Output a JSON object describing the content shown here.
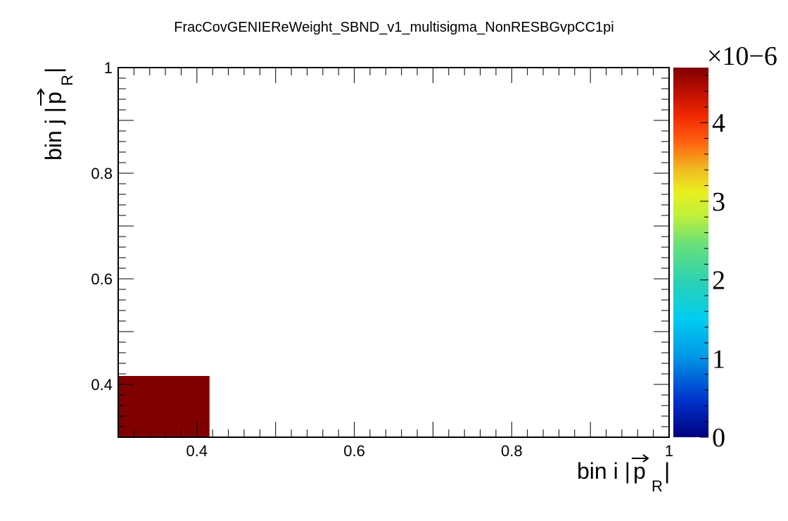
{
  "chart_data": {
    "type": "heatmap",
    "title": "FracCovGENIEReWeight_SBND_v1_multisigma_NonRESBGvpCC1pi",
    "xlabel": "bin i |p_R|",
    "ylabel": "bin j |p_R|",
    "xlim": [
      0.3,
      1.0
    ],
    "ylim": [
      0.3,
      1.0
    ],
    "x_ticks": [
      "0.4",
      "0.6",
      "0.8",
      "1"
    ],
    "y_ticks": [
      "0.4",
      "0.6",
      "0.8",
      "1"
    ],
    "zlim": [
      0,
      4.7e-06
    ],
    "z_ticks": [
      "0",
      "1",
      "2",
      "3",
      "4"
    ],
    "z_exponent": "×10−6",
    "cells": [
      {
        "x": [
          0.3,
          0.416
        ],
        "y": [
          0.3,
          0.416
        ],
        "value": 4.7e-06,
        "color": "#800000"
      }
    ]
  }
}
